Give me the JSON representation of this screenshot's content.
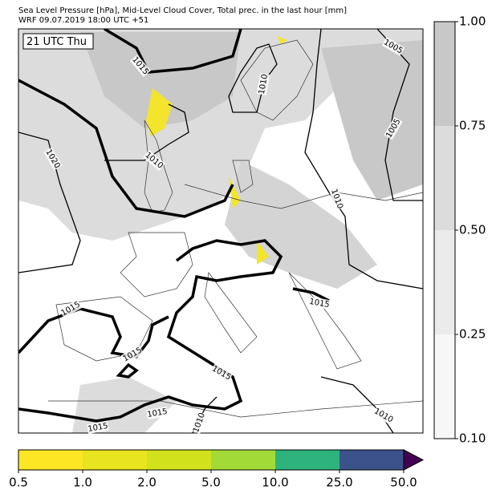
{
  "header": {
    "title_lines": [
      "Sea Level Pressure [hPa], Mid-Level Cloud Cover, Total prec. in the last hour [mm]",
      "WRF 09.07.2019 18:00 UTC +51"
    ]
  },
  "map": {
    "time_label": "21 UTC Thu",
    "isobar_labels": [
      "1015",
      "1010",
      "1005",
      "1005",
      "1020",
      "1010",
      "1010",
      "1015",
      "1015",
      "1015",
      "1015",
      "1015",
      "1015",
      "1010",
      "1010"
    ]
  },
  "cloud_colorbar": {
    "ticks": [
      "1.00",
      "0.75",
      "0.50",
      "0.25",
      "0.10"
    ],
    "colors": [
      "#c8c8c8",
      "#dcdcdc",
      "#ebebeb",
      "#f7f7f7"
    ]
  },
  "precip_colorbar": {
    "ticks": [
      "0.5",
      "1.0",
      "2.0",
      "5.0",
      "10.0",
      "25.0",
      "50.0"
    ],
    "colors": [
      "#fde725",
      "#e8e41f",
      "#d1e11c",
      "#a2da37",
      "#2eb37c",
      "#3b528b"
    ],
    "extend_color": "#440154"
  }
}
